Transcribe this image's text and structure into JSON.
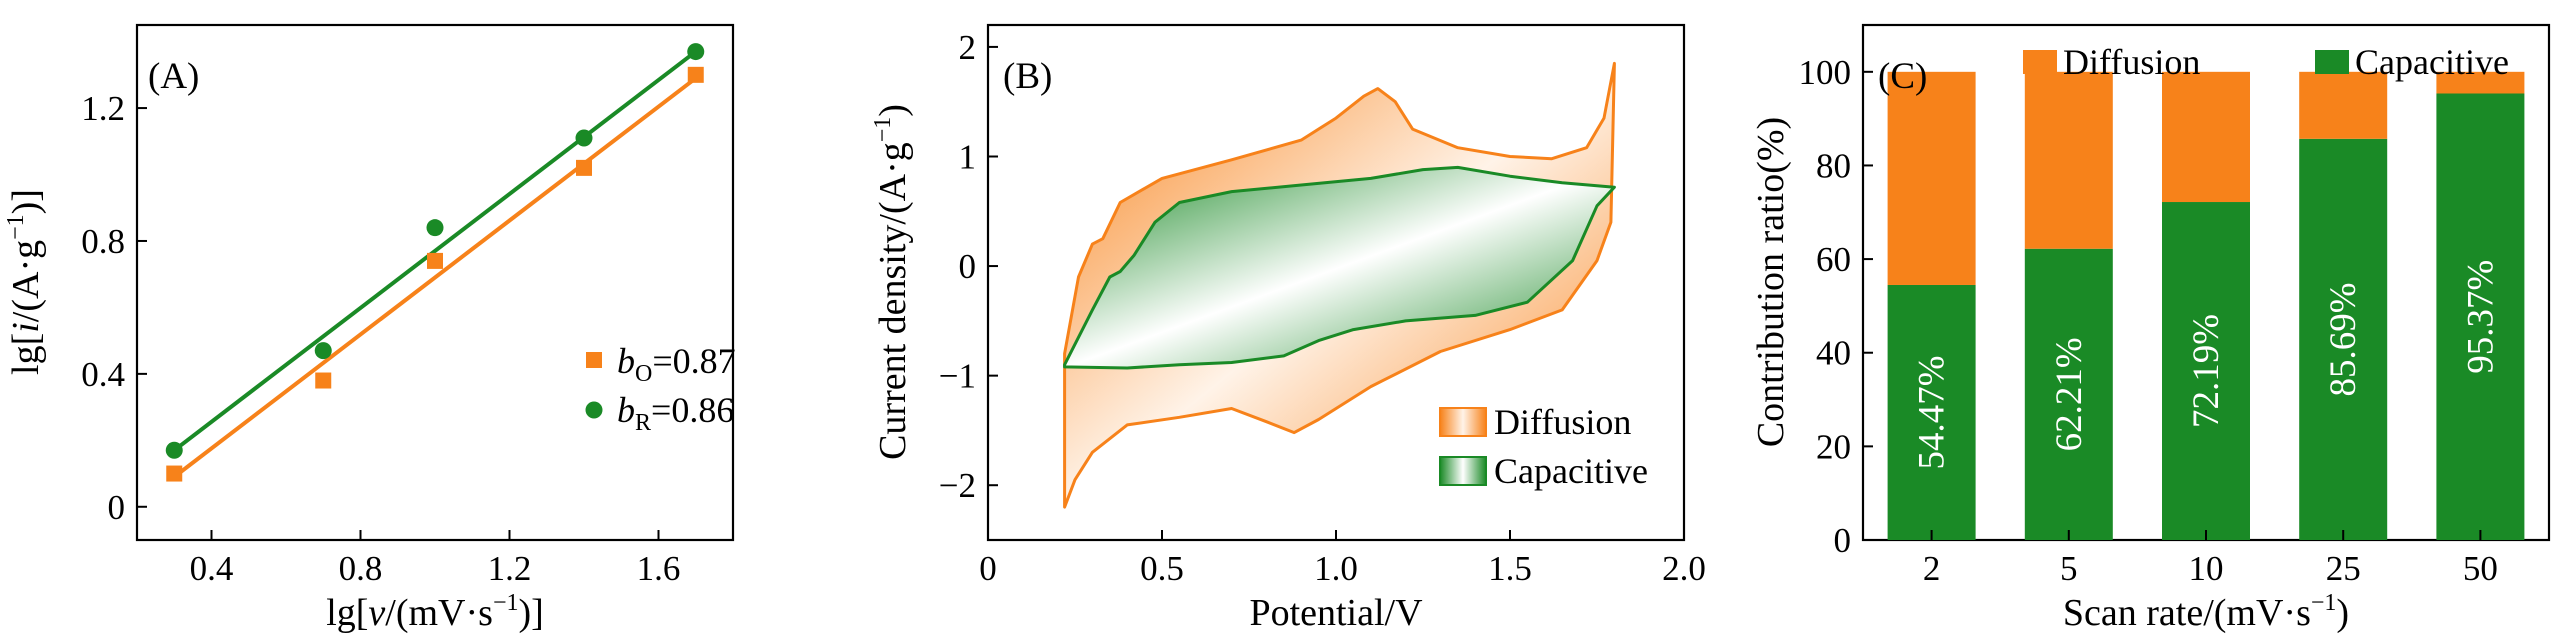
{
  "colors": {
    "orange": "#f7821a",
    "green": "#1a8a26"
  },
  "chart_data": [
    {
      "panel": "(A)",
      "type": "scatter",
      "xlabel_parts": [
        "lg[",
        "v",
        "/(mV·s",
        "−1",
        ")]"
      ],
      "ylabel_parts": [
        "lg[",
        "i",
        "/(A·g",
        "−1",
        ")]"
      ],
      "xlim": [
        0.2,
        1.8
      ],
      "ylim": [
        -0.1,
        1.45
      ],
      "xticks": [
        "0.4",
        "0.8",
        "1.2",
        "1.6"
      ],
      "xtick_values": [
        0.4,
        0.8,
        1.2,
        1.6
      ],
      "yticks": [
        "0",
        "0.4",
        "0.8",
        "1.2"
      ],
      "ytick_values": [
        0,
        0.4,
        0.8,
        1.2
      ],
      "series": [
        {
          "name": "b_O",
          "symbol": "b",
          "sub": "O",
          "value_text": "=0.87",
          "marker": "square",
          "color": "#f7821a",
          "x": [
            0.3,
            0.7,
            1.0,
            1.4,
            1.7
          ],
          "y": [
            0.1,
            0.38,
            0.74,
            1.02,
            1.3
          ],
          "fit": {
            "x": [
              0.3,
              1.7
            ],
            "y": [
              0.09,
              1.29
            ]
          }
        },
        {
          "name": "b_R",
          "symbol": "b",
          "sub": "R",
          "value_text": "=0.86",
          "marker": "circle",
          "color": "#1a8a26",
          "x": [
            0.3,
            0.7,
            1.0,
            1.4,
            1.7
          ],
          "y": [
            0.17,
            0.47,
            0.84,
            1.11,
            1.37
          ],
          "fit": {
            "x": [
              0.3,
              1.7
            ],
            "y": [
              0.17,
              1.37
            ]
          }
        }
      ]
    },
    {
      "panel": "(B)",
      "type": "area",
      "xlabel": "Potential/V",
      "ylabel_parts": [
        "Current density/(A·g",
        "−1",
        ")"
      ],
      "xlim": [
        0,
        2.0
      ],
      "ylim": [
        -2.5,
        2.2
      ],
      "xticks": [
        "0",
        "0.5",
        "1.0",
        "1.5",
        "2.0"
      ],
      "xtick_values": [
        0,
        0.5,
        1.0,
        1.5,
        2.0
      ],
      "yticks": [
        "2",
        "1",
        "0",
        "−1",
        "−2"
      ],
      "ytick_values": [
        2,
        1,
        0,
        -1,
        -2
      ],
      "legend": [
        "Diffusion",
        "Capacitive"
      ],
      "diffusion_upper": [
        [
          0.22,
          -0.8
        ],
        [
          0.26,
          -0.1
        ],
        [
          0.3,
          0.2
        ],
        [
          0.33,
          0.25
        ],
        [
          0.38,
          0.58
        ],
        [
          0.5,
          0.8
        ],
        [
          0.7,
          0.97
        ],
        [
          0.9,
          1.15
        ],
        [
          1.0,
          1.35
        ],
        [
          1.08,
          1.55
        ],
        [
          1.12,
          1.62
        ],
        [
          1.17,
          1.5
        ],
        [
          1.22,
          1.25
        ],
        [
          1.35,
          1.08
        ],
        [
          1.5,
          1.0
        ],
        [
          1.62,
          0.98
        ],
        [
          1.72,
          1.08
        ],
        [
          1.77,
          1.35
        ],
        [
          1.8,
          1.85
        ]
      ],
      "diffusion_lower": [
        [
          1.8,
          1.85
        ],
        [
          1.79,
          0.4
        ],
        [
          1.75,
          0.05
        ],
        [
          1.65,
          -0.4
        ],
        [
          1.5,
          -0.58
        ],
        [
          1.3,
          -0.78
        ],
        [
          1.1,
          -1.1
        ],
        [
          0.95,
          -1.4
        ],
        [
          0.88,
          -1.52
        ],
        [
          0.8,
          -1.42
        ],
        [
          0.7,
          -1.3
        ],
        [
          0.55,
          -1.38
        ],
        [
          0.4,
          -1.45
        ],
        [
          0.3,
          -1.7
        ],
        [
          0.25,
          -1.95
        ],
        [
          0.22,
          -2.2
        ],
        [
          0.22,
          -0.8
        ]
      ],
      "capacitive_upper": [
        [
          0.22,
          -0.9
        ],
        [
          0.3,
          -0.4
        ],
        [
          0.35,
          -0.1
        ],
        [
          0.38,
          -0.05
        ],
        [
          0.42,
          0.1
        ],
        [
          0.48,
          0.4
        ],
        [
          0.55,
          0.58
        ],
        [
          0.7,
          0.68
        ],
        [
          0.9,
          0.74
        ],
        [
          1.1,
          0.8
        ],
        [
          1.25,
          0.88
        ],
        [
          1.35,
          0.9
        ],
        [
          1.5,
          0.82
        ],
        [
          1.65,
          0.76
        ],
        [
          1.8,
          0.72
        ]
      ],
      "capacitive_lower": [
        [
          1.8,
          0.72
        ],
        [
          1.75,
          0.55
        ],
        [
          1.68,
          0.05
        ],
        [
          1.55,
          -0.33
        ],
        [
          1.4,
          -0.45
        ],
        [
          1.2,
          -0.5
        ],
        [
          1.05,
          -0.58
        ],
        [
          0.95,
          -0.68
        ],
        [
          0.85,
          -0.82
        ],
        [
          0.7,
          -0.88
        ],
        [
          0.55,
          -0.9
        ],
        [
          0.4,
          -0.93
        ],
        [
          0.22,
          -0.92
        ]
      ]
    },
    {
      "panel": "(C)",
      "type": "bar",
      "xlabel_parts": [
        "Scan rate/(mV·s",
        "−1",
        ")"
      ],
      "ylabel": "Contribution ratio(%)",
      "ylim": [
        0,
        110
      ],
      "yticks": [
        "0",
        "20",
        "40",
        "60",
        "80",
        "100"
      ],
      "ytick_values": [
        0,
        20,
        40,
        60,
        80,
        100
      ],
      "categories": [
        "2",
        "5",
        "10",
        "25",
        "50"
      ],
      "legend": [
        "Diffusion",
        "Capacitive"
      ],
      "series": [
        {
          "name": "Capacitive",
          "color": "#1a8a26",
          "values": [
            54.47,
            62.21,
            72.19,
            85.69,
            95.37
          ],
          "labels": [
            "54.47%",
            "62.21%",
            "72.19%",
            "85.69%",
            "95.37%"
          ]
        },
        {
          "name": "Diffusion",
          "color": "#f7821a",
          "values": [
            45.53,
            37.79,
            27.81,
            14.31,
            4.63
          ]
        }
      ]
    }
  ]
}
